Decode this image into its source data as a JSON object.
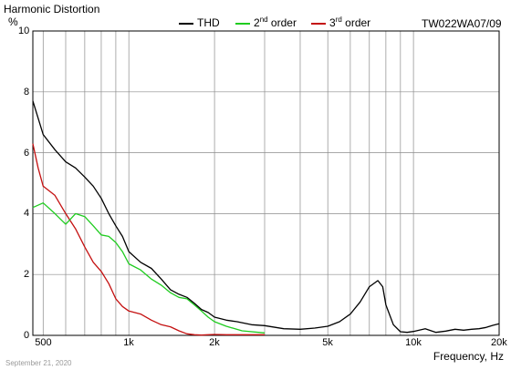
{
  "title": "Harmonic Distortion",
  "model": "TW022WA07/09",
  "date": "September 21, 2020",
  "legend": [
    {
      "base": "THD",
      "sup": "",
      "rest": "",
      "color": "#000000"
    },
    {
      "base": "2",
      "sup": "nd",
      "rest": " order",
      "color": "#1fcc1f"
    },
    {
      "base": "3",
      "sup": "rd",
      "rest": " order",
      "color": "#c41010"
    }
  ],
  "chart_data": {
    "type": "line",
    "title": "Harmonic Distortion",
    "xlabel": "Frequency, Hz",
    "ylabel": "%",
    "xscale": "log",
    "xlim": [
      460,
      20000
    ],
    "ylim": [
      0,
      10
    ],
    "grid": true,
    "legend_position": "top",
    "x_ticks": [
      {
        "value": 500,
        "label": "500"
      },
      {
        "value": 1000,
        "label": "1k"
      },
      {
        "value": 2000,
        "label": "2k"
      },
      {
        "value": 5000,
        "label": "5k"
      },
      {
        "value": 10000,
        "label": "10k"
      },
      {
        "value": 20000,
        "label": "20k"
      }
    ],
    "y_ticks": [
      0,
      2,
      4,
      6,
      8,
      10
    ],
    "series": [
      {
        "name": "THD",
        "color": "#000000",
        "x": [
          460,
          500,
          550,
          600,
          650,
          700,
          750,
          800,
          850,
          900,
          950,
          1000,
          1100,
          1200,
          1300,
          1400,
          1500,
          1600,
          1700,
          1800,
          1900,
          2000,
          2200,
          2400,
          2700,
          3000,
          3500,
          4000,
          4500,
          5000,
          5500,
          6000,
          6500,
          7000,
          7500,
          7800,
          8000,
          8500,
          9000,
          9500,
          10000,
          11000,
          12000,
          13000,
          14000,
          15000,
          16000,
          17000,
          18000,
          19000,
          20000
        ],
        "y": [
          7.7,
          6.6,
          6.1,
          5.7,
          5.5,
          5.2,
          4.9,
          4.5,
          4.0,
          3.6,
          3.25,
          2.75,
          2.4,
          2.2,
          1.85,
          1.5,
          1.35,
          1.25,
          1.05,
          0.85,
          0.75,
          0.6,
          0.5,
          0.45,
          0.35,
          0.32,
          0.22,
          0.2,
          0.24,
          0.3,
          0.45,
          0.7,
          1.1,
          1.6,
          1.8,
          1.6,
          1.0,
          0.35,
          0.12,
          0.1,
          0.13,
          0.22,
          0.1,
          0.14,
          0.2,
          0.17,
          0.2,
          0.22,
          0.26,
          0.33,
          0.38
        ]
      },
      {
        "name": "2nd order",
        "series_label": "2nd order",
        "color": "#1fcc1f",
        "x": [
          460,
          500,
          550,
          600,
          650,
          700,
          750,
          800,
          850,
          900,
          950,
          1000,
          1100,
          1200,
          1300,
          1400,
          1500,
          1600,
          1700,
          1800,
          1900,
          2000,
          2200,
          2500,
          3000
        ],
        "y": [
          4.2,
          4.35,
          4.0,
          3.65,
          4.0,
          3.9,
          3.6,
          3.3,
          3.25,
          3.05,
          2.75,
          2.35,
          2.15,
          1.85,
          1.65,
          1.4,
          1.25,
          1.2,
          1.0,
          0.8,
          0.6,
          0.45,
          0.3,
          0.15,
          0.08
        ]
      },
      {
        "name": "3rd order",
        "series_label": "3rd order",
        "color": "#c41010",
        "x": [
          460,
          480,
          500,
          550,
          600,
          650,
          700,
          750,
          800,
          850,
          900,
          950,
          1000,
          1100,
          1200,
          1300,
          1400,
          1500,
          1600,
          1700,
          1800,
          1900,
          2000,
          2200,
          2500,
          3000
        ],
        "y": [
          6.3,
          5.5,
          4.9,
          4.6,
          4.0,
          3.5,
          2.9,
          2.4,
          2.1,
          1.7,
          1.2,
          0.95,
          0.8,
          0.7,
          0.5,
          0.35,
          0.28,
          0.15,
          0.05,
          0.02,
          0.01,
          0.02,
          0.03,
          0.02,
          0.02,
          0.02
        ]
      }
    ]
  }
}
